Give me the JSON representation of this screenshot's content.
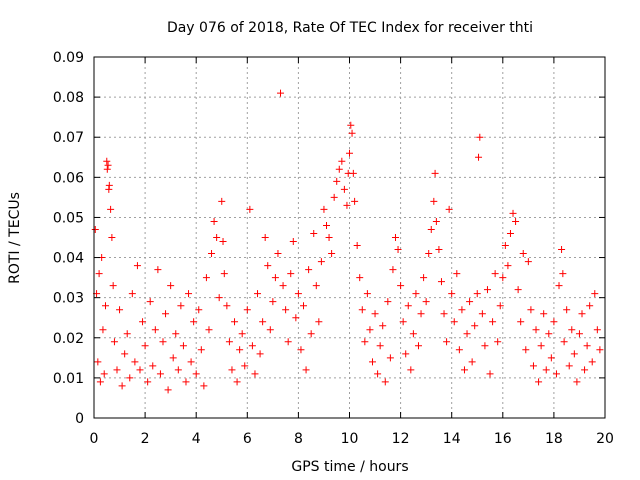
{
  "chart_data": {
    "type": "scatter",
    "title": "Day 076 of 2018, Rate Of TEC Index for receiver thti",
    "xlabel": "GPS time / hours",
    "ylabel": "ROTI / TECUs",
    "xlim": [
      0,
      20
    ],
    "ylim": [
      0,
      0.09
    ],
    "x_ticks": [
      0,
      2,
      4,
      6,
      8,
      10,
      12,
      14,
      16,
      18,
      20
    ],
    "x_tick_labels": [
      "0",
      "2",
      "4",
      "6",
      "8",
      "10",
      "12",
      "14",
      "16",
      "18",
      "20"
    ],
    "y_ticks": [
      0,
      0.01,
      0.02,
      0.03,
      0.04,
      0.05,
      0.06,
      0.07,
      0.08,
      0.09
    ],
    "y_tick_labels": [
      "0",
      "0.01",
      "0.02",
      "0.03",
      "0.04",
      "0.05",
      "0.06",
      "0.07",
      "0.08",
      "0.09"
    ],
    "grid": true,
    "marker": "+",
    "series_color": "#ff0000",
    "series": [
      {
        "name": "ROTI",
        "points": [
          [
            0.05,
            0.047
          ],
          [
            0.1,
            0.031
          ],
          [
            0.15,
            0.014
          ],
          [
            0.2,
            0.036
          ],
          [
            0.25,
            0.009
          ],
          [
            0.3,
            0.04
          ],
          [
            0.35,
            0.022
          ],
          [
            0.4,
            0.011
          ],
          [
            0.45,
            0.028
          ],
          [
            0.5,
            0.064
          ],
          [
            0.52,
            0.062
          ],
          [
            0.55,
            0.063
          ],
          [
            0.58,
            0.057
          ],
          [
            0.6,
            0.058
          ],
          [
            0.65,
            0.052
          ],
          [
            0.7,
            0.045
          ],
          [
            0.75,
            0.033
          ],
          [
            0.8,
            0.019
          ],
          [
            0.9,
            0.012
          ],
          [
            1.0,
            0.027
          ],
          [
            1.1,
            0.008
          ],
          [
            1.2,
            0.016
          ],
          [
            1.3,
            0.021
          ],
          [
            1.4,
            0.01
          ],
          [
            1.5,
            0.031
          ],
          [
            1.6,
            0.014
          ],
          [
            1.7,
            0.038
          ],
          [
            1.8,
            0.012
          ],
          [
            1.9,
            0.024
          ],
          [
            2.0,
            0.018
          ],
          [
            2.1,
            0.009
          ],
          [
            2.2,
            0.029
          ],
          [
            2.3,
            0.013
          ],
          [
            2.4,
            0.022
          ],
          [
            2.5,
            0.037
          ],
          [
            2.6,
            0.011
          ],
          [
            2.7,
            0.019
          ],
          [
            2.8,
            0.026
          ],
          [
            2.9,
            0.007
          ],
          [
            3.0,
            0.033
          ],
          [
            3.1,
            0.015
          ],
          [
            3.2,
            0.021
          ],
          [
            3.3,
            0.012
          ],
          [
            3.4,
            0.028
          ],
          [
            3.5,
            0.018
          ],
          [
            3.6,
            0.009
          ],
          [
            3.7,
            0.031
          ],
          [
            3.8,
            0.014
          ],
          [
            3.9,
            0.024
          ],
          [
            4.0,
            0.011
          ],
          [
            4.1,
            0.027
          ],
          [
            4.2,
            0.017
          ],
          [
            4.3,
            0.008
          ],
          [
            4.4,
            0.035
          ],
          [
            4.5,
            0.022
          ],
          [
            4.6,
            0.041
          ],
          [
            4.7,
            0.049
          ],
          [
            4.8,
            0.045
          ],
          [
            4.9,
            0.03
          ],
          [
            5.0,
            0.054
          ],
          [
            5.05,
            0.044
          ],
          [
            5.1,
            0.036
          ],
          [
            5.2,
            0.028
          ],
          [
            5.3,
            0.019
          ],
          [
            5.4,
            0.012
          ],
          [
            5.5,
            0.024
          ],
          [
            5.6,
            0.009
          ],
          [
            5.7,
            0.017
          ],
          [
            5.8,
            0.021
          ],
          [
            5.9,
            0.013
          ],
          [
            6.0,
            0.027
          ],
          [
            6.1,
            0.052
          ],
          [
            6.2,
            0.018
          ],
          [
            6.3,
            0.011
          ],
          [
            6.4,
            0.031
          ],
          [
            6.5,
            0.016
          ],
          [
            6.6,
            0.024
          ],
          [
            6.7,
            0.045
          ],
          [
            6.8,
            0.038
          ],
          [
            6.9,
            0.022
          ],
          [
            7.0,
            0.029
          ],
          [
            7.1,
            0.035
          ],
          [
            7.2,
            0.041
          ],
          [
            7.3,
            0.081
          ],
          [
            7.4,
            0.033
          ],
          [
            7.5,
            0.027
          ],
          [
            7.6,
            0.019
          ],
          [
            7.7,
            0.036
          ],
          [
            7.8,
            0.044
          ],
          [
            7.9,
            0.025
          ],
          [
            8.0,
            0.031
          ],
          [
            8.1,
            0.017
          ],
          [
            8.2,
            0.028
          ],
          [
            8.3,
            0.012
          ],
          [
            8.4,
            0.037
          ],
          [
            8.5,
            0.021
          ],
          [
            8.6,
            0.046
          ],
          [
            8.7,
            0.033
          ],
          [
            8.8,
            0.024
          ],
          [
            8.9,
            0.039
          ],
          [
            9.0,
            0.052
          ],
          [
            9.1,
            0.048
          ],
          [
            9.2,
            0.045
          ],
          [
            9.3,
            0.041
          ],
          [
            9.4,
            0.055
          ],
          [
            9.5,
            0.059
          ],
          [
            9.6,
            0.062
          ],
          [
            9.7,
            0.064
          ],
          [
            9.8,
            0.057
          ],
          [
            9.9,
            0.053
          ],
          [
            9.95,
            0.061
          ],
          [
            10.0,
            0.066
          ],
          [
            10.05,
            0.073
          ],
          [
            10.1,
            0.071
          ],
          [
            10.15,
            0.061
          ],
          [
            10.2,
            0.054
          ],
          [
            10.3,
            0.043
          ],
          [
            10.4,
            0.035
          ],
          [
            10.5,
            0.027
          ],
          [
            10.6,
            0.019
          ],
          [
            10.7,
            0.031
          ],
          [
            10.8,
            0.022
          ],
          [
            10.9,
            0.014
          ],
          [
            11.0,
            0.026
          ],
          [
            11.1,
            0.011
          ],
          [
            11.2,
            0.018
          ],
          [
            11.3,
            0.023
          ],
          [
            11.4,
            0.009
          ],
          [
            11.5,
            0.029
          ],
          [
            11.6,
            0.015
          ],
          [
            11.7,
            0.037
          ],
          [
            11.8,
            0.045
          ],
          [
            11.9,
            0.042
          ],
          [
            12.0,
            0.033
          ],
          [
            12.1,
            0.024
          ],
          [
            12.2,
            0.016
          ],
          [
            12.3,
            0.028
          ],
          [
            12.4,
            0.012
          ],
          [
            12.5,
            0.021
          ],
          [
            12.6,
            0.031
          ],
          [
            12.7,
            0.018
          ],
          [
            12.8,
            0.026
          ],
          [
            12.9,
            0.035
          ],
          [
            13.0,
            0.029
          ],
          [
            13.1,
            0.041
          ],
          [
            13.2,
            0.047
          ],
          [
            13.3,
            0.054
          ],
          [
            13.35,
            0.061
          ],
          [
            13.4,
            0.049
          ],
          [
            13.5,
            0.042
          ],
          [
            13.6,
            0.034
          ],
          [
            13.7,
            0.026
          ],
          [
            13.8,
            0.019
          ],
          [
            13.9,
            0.052
          ],
          [
            14.0,
            0.031
          ],
          [
            14.1,
            0.024
          ],
          [
            14.2,
            0.036
          ],
          [
            14.3,
            0.017
          ],
          [
            14.4,
            0.027
          ],
          [
            14.5,
            0.012
          ],
          [
            14.6,
            0.021
          ],
          [
            14.7,
            0.029
          ],
          [
            14.8,
            0.014
          ],
          [
            14.9,
            0.023
          ],
          [
            15.0,
            0.031
          ],
          [
            15.05,
            0.065
          ],
          [
            15.1,
            0.07
          ],
          [
            15.2,
            0.026
          ],
          [
            15.3,
            0.018
          ],
          [
            15.4,
            0.032
          ],
          [
            15.5,
            0.011
          ],
          [
            15.6,
            0.024
          ],
          [
            15.7,
            0.036
          ],
          [
            15.8,
            0.019
          ],
          [
            15.9,
            0.028
          ],
          [
            16.0,
            0.035
          ],
          [
            16.1,
            0.043
          ],
          [
            16.2,
            0.038
          ],
          [
            16.3,
            0.046
          ],
          [
            16.4,
            0.051
          ],
          [
            16.5,
            0.049
          ],
          [
            16.6,
            0.032
          ],
          [
            16.7,
            0.024
          ],
          [
            16.8,
            0.041
          ],
          [
            16.9,
            0.017
          ],
          [
            17.0,
            0.039
          ],
          [
            17.1,
            0.027
          ],
          [
            17.2,
            0.013
          ],
          [
            17.3,
            0.022
          ],
          [
            17.4,
            0.009
          ],
          [
            17.5,
            0.018
          ],
          [
            17.6,
            0.026
          ],
          [
            17.7,
            0.012
          ],
          [
            17.8,
            0.021
          ],
          [
            17.9,
            0.015
          ],
          [
            18.0,
            0.024
          ],
          [
            18.1,
            0.011
          ],
          [
            18.2,
            0.033
          ],
          [
            18.3,
            0.042
          ],
          [
            18.35,
            0.036
          ],
          [
            18.4,
            0.019
          ],
          [
            18.5,
            0.027
          ],
          [
            18.6,
            0.013
          ],
          [
            18.7,
            0.022
          ],
          [
            18.8,
            0.016
          ],
          [
            18.9,
            0.009
          ],
          [
            19.0,
            0.021
          ],
          [
            19.1,
            0.026
          ],
          [
            19.2,
            0.012
          ],
          [
            19.3,
            0.018
          ],
          [
            19.4,
            0.028
          ],
          [
            19.5,
            0.014
          ],
          [
            19.6,
            0.031
          ],
          [
            19.7,
            0.022
          ],
          [
            19.8,
            0.017
          ]
        ]
      }
    ]
  }
}
